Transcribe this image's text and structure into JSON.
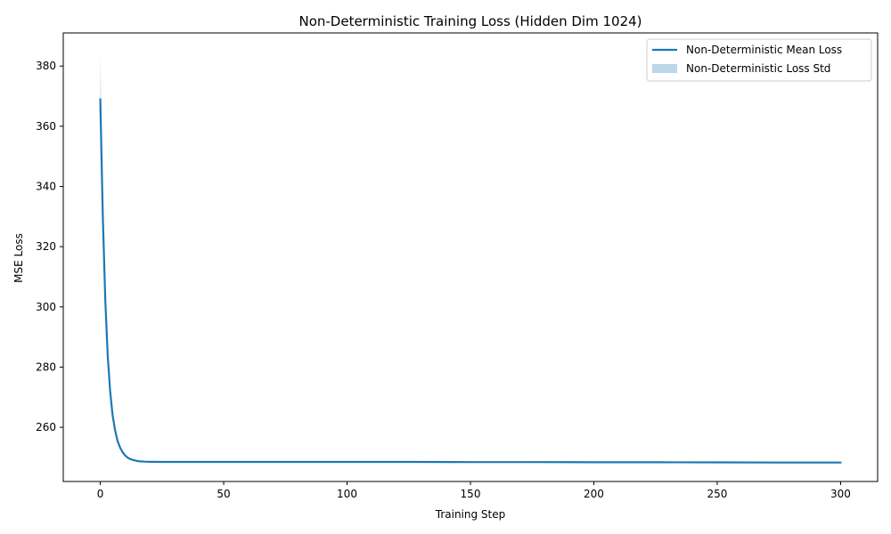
{
  "chart_data": {
    "type": "line",
    "title": "Non-Deterministic Training Loss (Hidden Dim 1024)",
    "xlabel": "Training Step",
    "ylabel": "MSE Loss",
    "xlim": [
      -15,
      315
    ],
    "ylim": [
      242,
      391
    ],
    "xticks": [
      0,
      50,
      100,
      150,
      200,
      250,
      300
    ],
    "yticks": [
      260,
      280,
      300,
      320,
      340,
      360,
      380
    ],
    "grid": false,
    "legend_position": "top-right",
    "series": [
      {
        "name": "Non-Deterministic Mean Loss",
        "kind": "line",
        "color": "#1f77b4",
        "x": [
          0,
          1,
          2,
          3,
          4,
          5,
          6,
          7,
          8,
          9,
          10,
          11,
          12,
          13,
          14,
          15,
          16,
          18,
          20,
          25,
          30,
          40,
          50,
          75,
          100,
          125,
          150,
          175,
          200,
          225,
          250,
          275,
          300
        ],
        "y": [
          369,
          331,
          303,
          284,
          272,
          264,
          259,
          255.5,
          253.3,
          251.8,
          250.7,
          250,
          249.5,
          249.2,
          249,
          248.8,
          248.7,
          248.6,
          248.55,
          248.5,
          248.5,
          248.5,
          248.5,
          248.5,
          248.5,
          248.5,
          248.45,
          248.45,
          248.4,
          248.4,
          248.35,
          248.3,
          248.3
        ]
      },
      {
        "name": "Non-Deterministic Loss Std",
        "kind": "band",
        "color": "#1f77b4",
        "opacity": 0.3,
        "x": [
          0,
          1,
          2,
          3,
          4,
          5,
          6,
          7,
          8,
          9,
          10,
          12,
          15,
          20,
          300
        ],
        "upper": [
          384,
          340,
          308,
          287,
          274,
          265.5,
          260,
          256.3,
          253.9,
          252.2,
          251,
          249.7,
          248.9,
          248.6,
          248.35
        ],
        "lower": [
          354,
          322,
          298,
          281,
          270,
          262.5,
          258,
          254.7,
          252.7,
          251.4,
          250.4,
          249.3,
          248.7,
          248.5,
          248.25
        ]
      }
    ]
  }
}
